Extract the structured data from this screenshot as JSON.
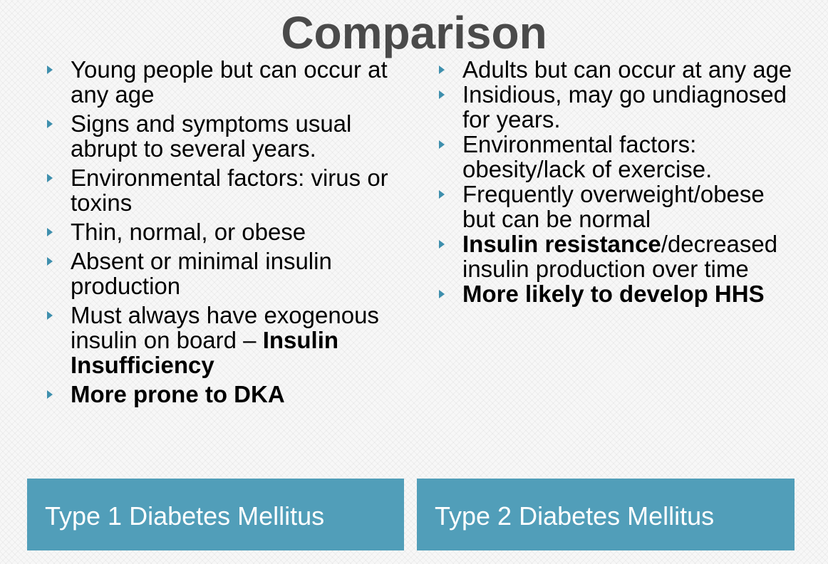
{
  "title": "Comparison",
  "left_column": {
    "label": "Type 1 Diabetes Mellitus",
    "bullets": [
      {
        "text": "Young people but can occur at any age"
      },
      {
        "text": "Signs and symptoms usual abrupt to several years."
      },
      {
        "text": "Environmental factors: virus or toxins"
      },
      {
        "text": "Thin, normal, or obese"
      },
      {
        "text": "Absent or minimal insulin production"
      },
      {
        "text": "Must always have exogenous insulin on board – ",
        "bold": "Insulin Insufficiency"
      },
      {
        "bold": "More prone to DKA"
      }
    ]
  },
  "right_column": {
    "label": "Type 2 Diabetes Mellitus",
    "bullets": [
      {
        "text": "Adults but can occur at any age"
      },
      {
        "text": "Insidious, may go undiagnosed for years."
      },
      {
        "text": "Environmental factors: obesity/lack of exercise."
      },
      {
        "text": "Frequently overweight/obese but can be normal"
      },
      {
        "bold": "Insulin resistance",
        "text": "/decreased insulin production over time"
      },
      {
        "bold": "More likely to develop HHS"
      }
    ]
  },
  "colors": {
    "accent": "#519eb9",
    "bullet_marker": "#3e8fad",
    "title": "#4a4a4a"
  }
}
